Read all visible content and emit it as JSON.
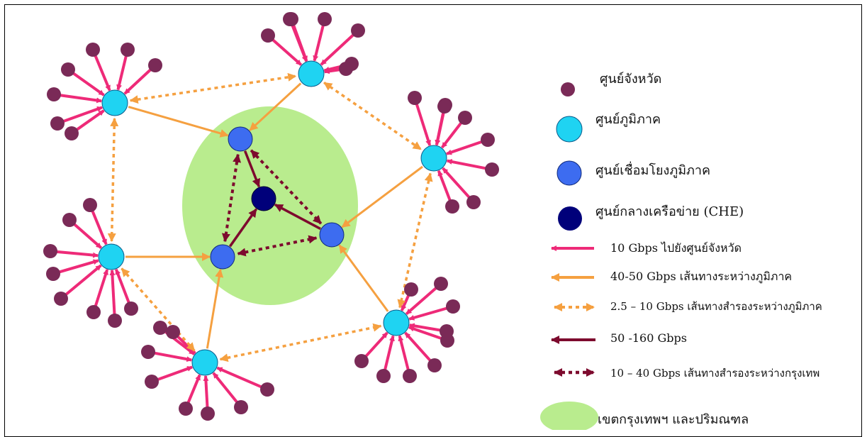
{
  "colors": {
    "province_node": "#7a2a57",
    "regional_node": "#1fd3f2",
    "connector_node": "#3d6cf0",
    "core_node": "#00007a",
    "link_10g": "#ee2a78",
    "link_40_50g": "#f5a040",
    "link_backup_regional": "#f5a040",
    "link_50_160g": "#7d0a2e",
    "link_backup_bangkok": "#7d0a2e",
    "metro_area": "#b9ec8e"
  },
  "legend": {
    "province": "ศูนย์จังหวัด",
    "regional": "ศูนย์ภูมิภาค",
    "connector": "ศูนย์เชื่อมโยงภูมิภาค",
    "core": "ศูนย์กลางเครือข่าย (CHE)",
    "link_10g": "10 Gbps  ไปยังศูนย์จังหวัด",
    "link_40_50g": "40-50 Gbps เส้นทางระหว่างภูมิภาค",
    "link_backup_regional": "2.5 – 10  Gbps เส้นทางสำรองระหว่างภูมิภาค",
    "link_50_160g": "50 -160  Gbps",
    "link_backup_bangkok": "10 – 40 Gbps เส้นทางสำรองระหว่างกรุงเทพ",
    "metro_area": "เขตกรุงเทพฯ และปริมณฑล"
  }
}
